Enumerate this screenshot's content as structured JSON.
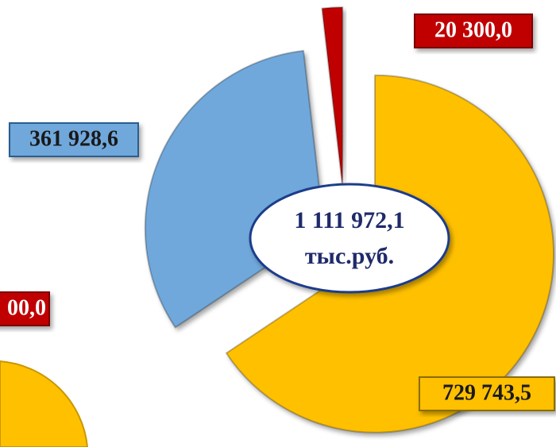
{
  "chart_data": {
    "type": "pie",
    "categories": [
      null,
      null,
      null
    ],
    "values": [
      729743.5,
      361928.6,
      20300
    ],
    "value_labels": [
      "729 743,5",
      "361 928,6",
      "20 300,0"
    ],
    "colors": [
      "#ffc000",
      "#6fa8dc",
      "#c00000"
    ],
    "center_text": [
      "1 111 972,1",
      "тыс.руб."
    ]
  },
  "cropped_label": "00,0"
}
